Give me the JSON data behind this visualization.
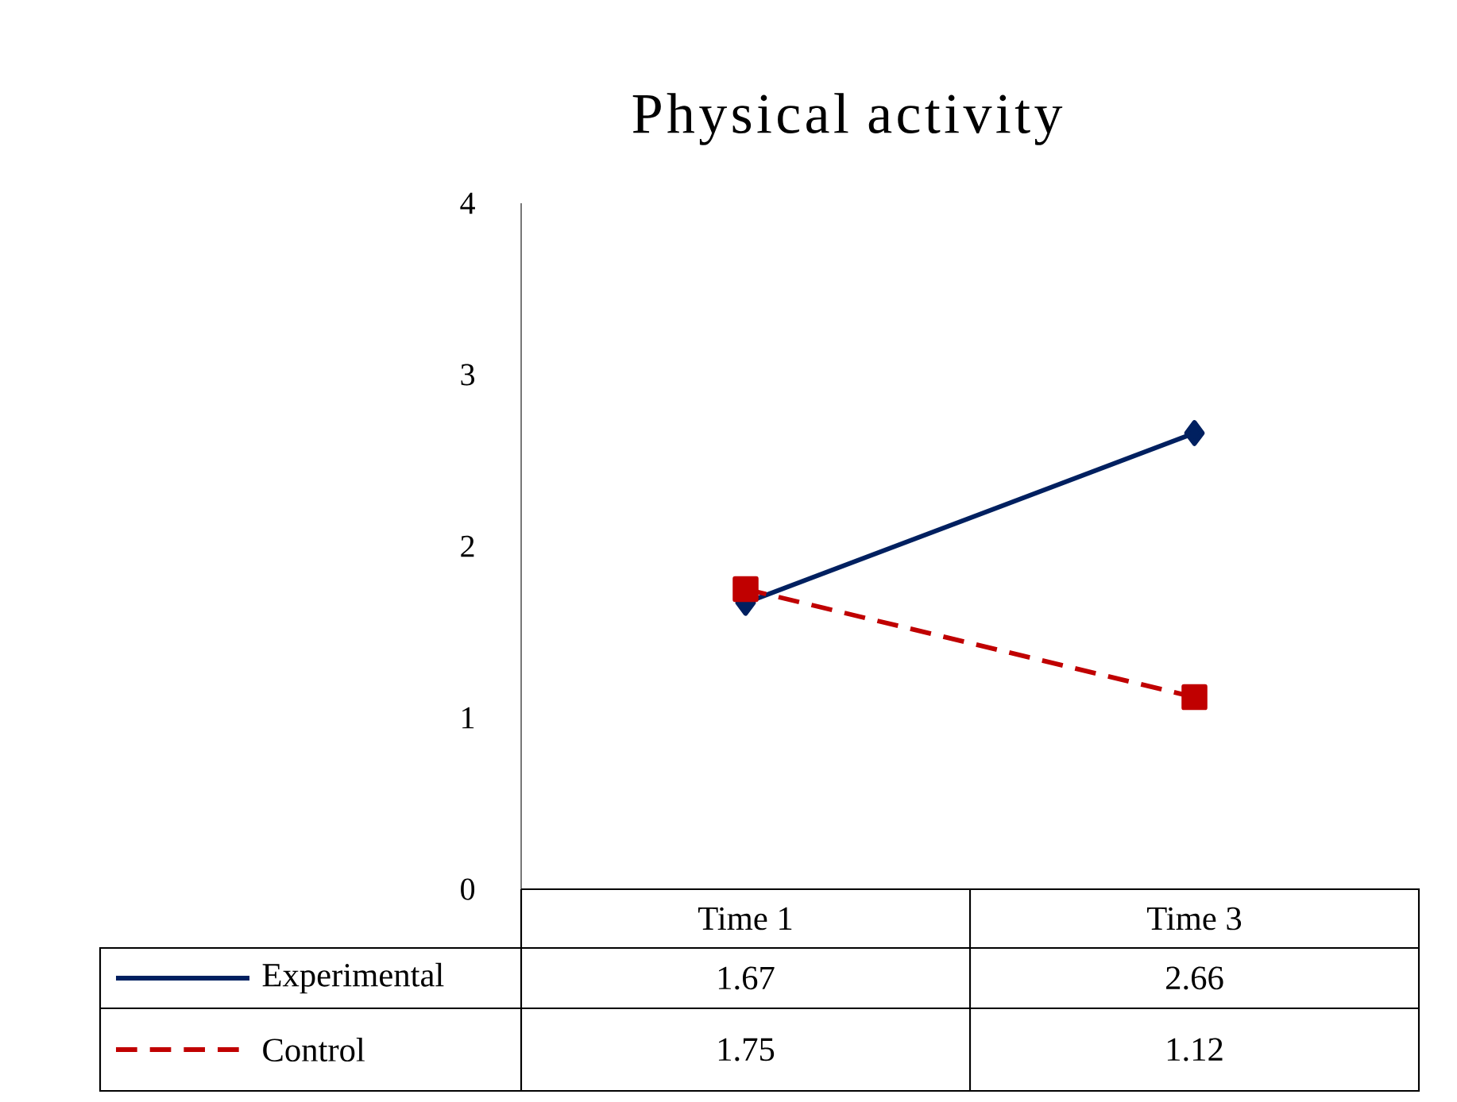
{
  "chart_data": {
    "type": "line",
    "title": "Physical activity",
    "categories": [
      "Time 1",
      "Time 3"
    ],
    "series": [
      {
        "name": "Experimental",
        "color": "#002060",
        "values": [
          1.67,
          2.66
        ],
        "marker": "diamond",
        "line_style": "solid"
      },
      {
        "name": "Control",
        "color": "#c00000",
        "values": [
          1.75,
          1.12
        ],
        "marker": "square",
        "line_style": "dashed"
      }
    ],
    "ylim": [
      0,
      4
    ],
    "yticks": [
      0,
      1,
      2,
      3,
      4
    ],
    "data_labels": true,
    "legend": "bottom"
  }
}
